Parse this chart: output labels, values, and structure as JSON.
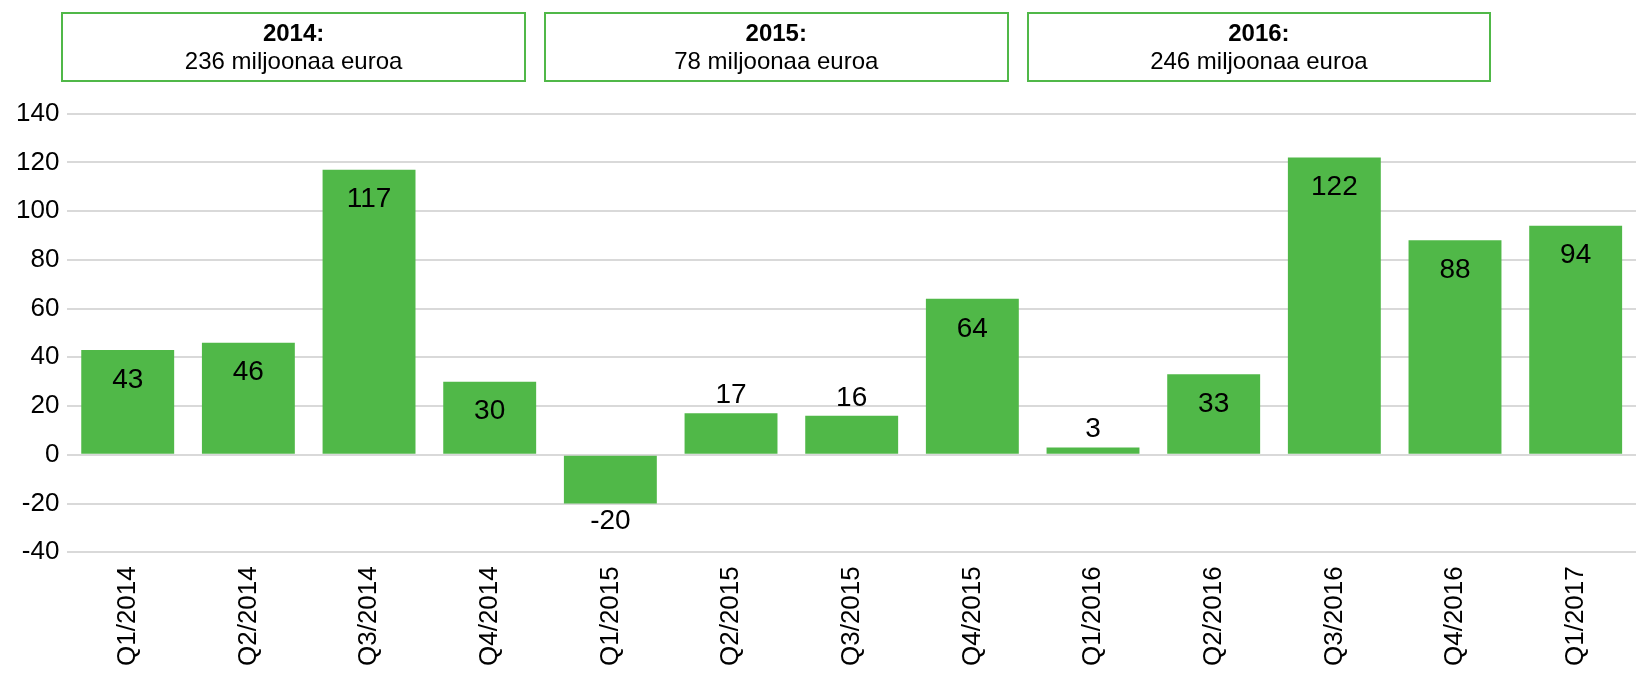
{
  "chart_data": {
    "type": "bar",
    "categories": [
      "Q1/2014",
      "Q2/2014",
      "Q3/2014",
      "Q4/2014",
      "Q1/2015",
      "Q2/2015",
      "Q3/2015",
      "Q4/2015",
      "Q1/2016",
      "Q2/2016",
      "Q3/2016",
      "Q4/2016",
      "Q1/2017"
    ],
    "values": [
      43,
      46,
      117,
      30,
      -20,
      17,
      16,
      64,
      3,
      33,
      122,
      88,
      94
    ],
    "color": "#50b848",
    "ylim": [
      -40,
      140
    ],
    "yticks": [
      -40,
      -20,
      0,
      20,
      40,
      60,
      80,
      100,
      120,
      140
    ],
    "grid": "y",
    "legend": false,
    "data_labels": true,
    "annotations": [
      "2014:\n236 miljoonaa euroa",
      "2015:\n78 miljoonaa euroa",
      "2016:\n246 miljoonaa euroa"
    ]
  }
}
